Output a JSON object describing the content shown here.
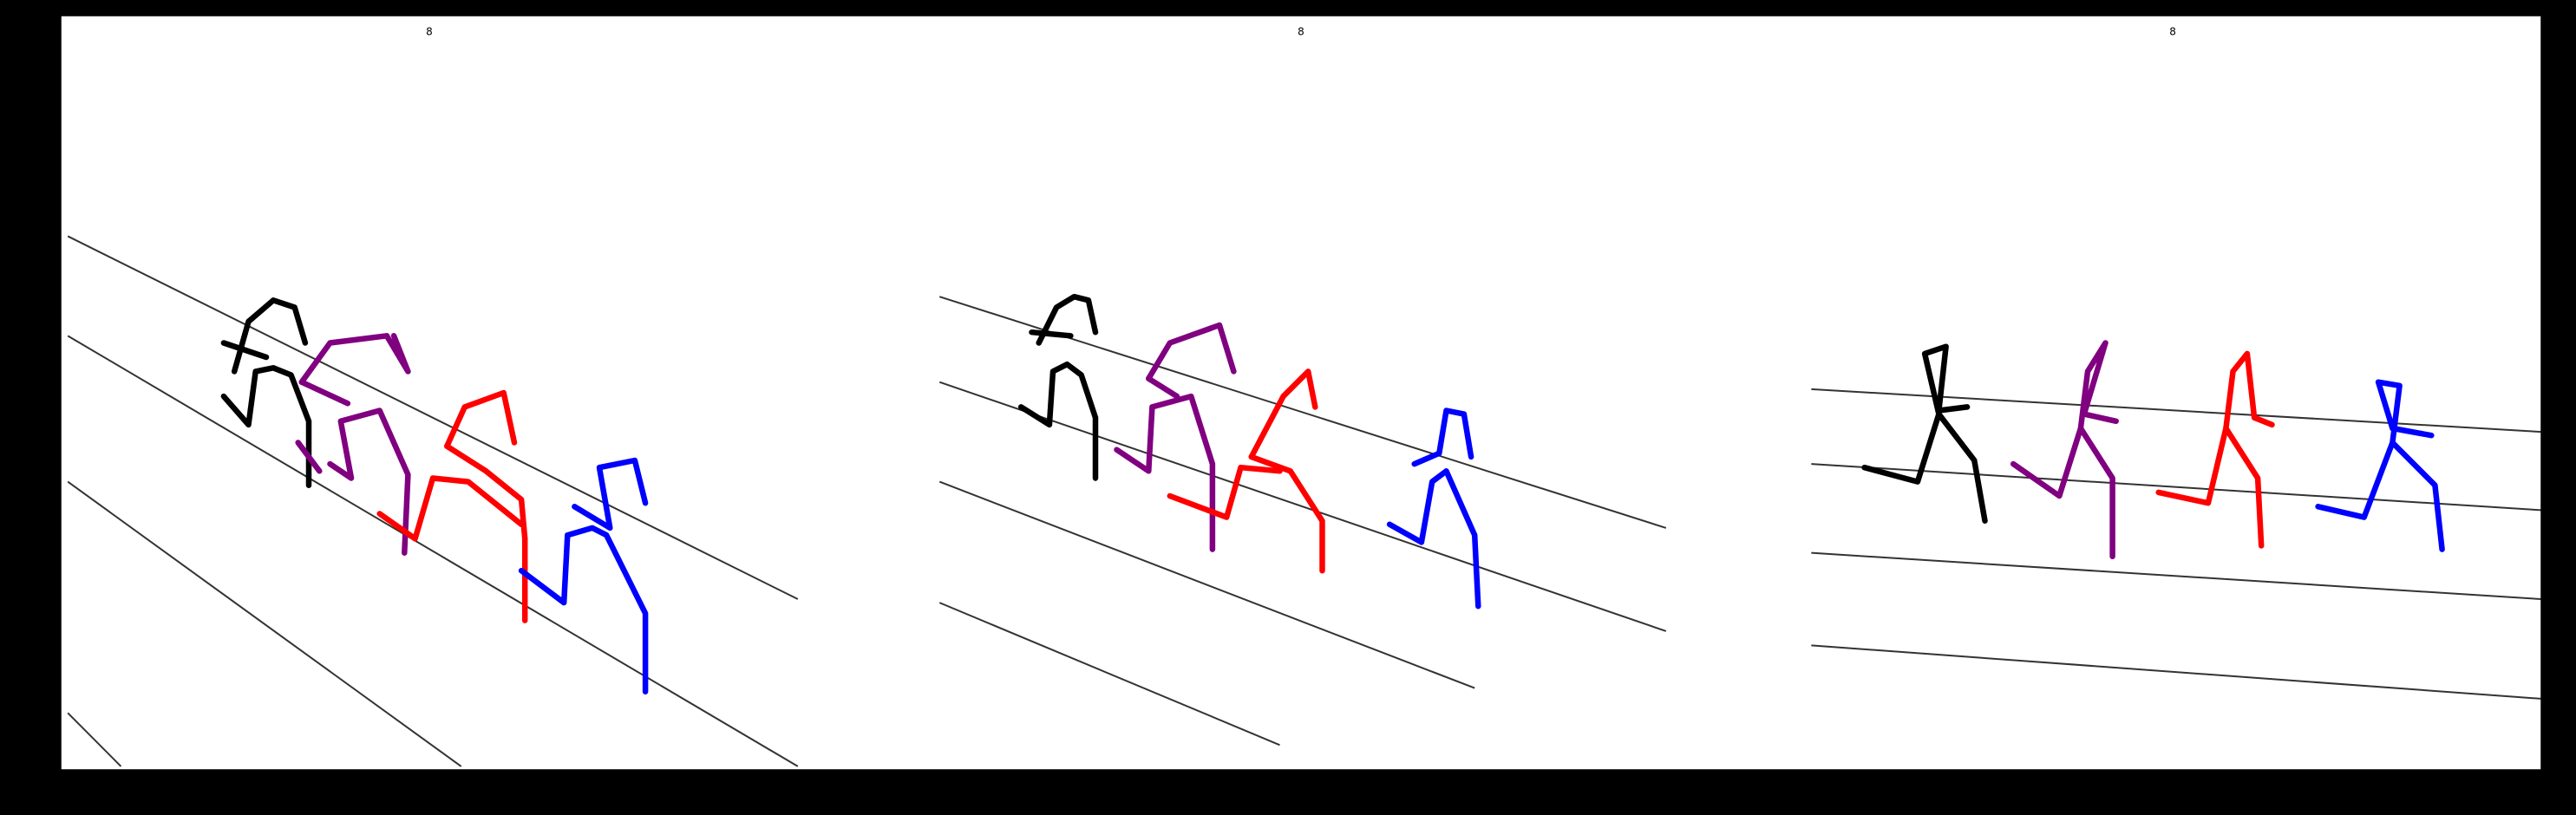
{
  "chart_data": {
    "type": "line",
    "title": "",
    "xlabel": "",
    "ylabel": "",
    "xlim": [
      0,
      7000
    ],
    "ylim": [
      2120,
      0
    ],
    "y_inverted": true,
    "grid": false,
    "legend": "none",
    "xticks": [
      0,
      1000,
      2000,
      3000,
      4000,
      5000,
      6000,
      7000
    ],
    "yticks": [
      0,
      250,
      500,
      750,
      1000,
      1250,
      1500,
      1750,
      2000
    ],
    "panel_labels": [
      {
        "text": "8",
        "x": 1040,
        "y": 30
      },
      {
        "text": "8",
        "x": 3500,
        "y": 30
      },
      {
        "text": "8",
        "x": 5960,
        "y": 30
      }
    ],
    "colors": {
      "background": "#ffffff",
      "lane_lines": "#333333",
      "runner_1": "#000000",
      "runner_2": "#800080",
      "runner_3": "#ff0000",
      "runner_4": "#0000ff"
    },
    "lane_lines": [
      [
        [
          20,
          620
        ],
        [
          2080,
          1640
        ]
      ],
      [
        [
          20,
          900
        ],
        [
          2080,
          2110
        ]
      ],
      [
        [
          20,
          1310
        ],
        [
          1130,
          2110
        ]
      ],
      [
        [
          20,
          1960
        ],
        [
          170,
          2110
        ]
      ],
      [
        [
          2480,
          790
        ],
        [
          4530,
          1440
        ]
      ],
      [
        [
          2480,
          1030
        ],
        [
          4530,
          1730
        ]
      ],
      [
        [
          2480,
          1310
        ],
        [
          3990,
          1890
        ]
      ],
      [
        [
          2480,
          1650
        ],
        [
          3440,
          2050
        ]
      ],
      [
        [
          4940,
          1050
        ],
        [
          7000,
          1170
        ]
      ],
      [
        [
          4940,
          1260
        ],
        [
          7000,
          1390
        ]
      ],
      [
        [
          4940,
          1510
        ],
        [
          7000,
          1640
        ]
      ],
      [
        [
          4940,
          1770
        ],
        [
          7000,
          1920
        ]
      ]
    ],
    "series": [
      {
        "color": "#000000",
        "segments": [
          [
            [
              490,
              1000
            ],
            [
              530,
              860
            ],
            [
              600,
              800
            ],
            [
              660,
              820
            ],
            [
              690,
              920
            ]
          ],
          [
            [
              460,
              1070
            ],
            [
              530,
              1150
            ],
            [
              550,
              1000
            ],
            [
              600,
              990
            ],
            [
              650,
              1010
            ],
            [
              700,
              1140
            ],
            [
              700,
              1320
            ]
          ],
          [
            [
              460,
              920
            ],
            [
              580,
              960
            ]
          ],
          [
            [
              2710,
              1100
            ],
            [
              2790,
              1150
            ],
            [
              2800,
              1000
            ],
            [
              2840,
              980
            ],
            [
              2880,
              1010
            ],
            [
              2920,
              1130
            ],
            [
              2920,
              1300
            ]
          ],
          [
            [
              2760,
              920
            ],
            [
              2810,
              820
            ],
            [
              2860,
              790
            ],
            [
              2900,
              800
            ],
            [
              2920,
              890
            ]
          ],
          [
            [
              2740,
              890
            ],
            [
              2850,
              900
            ]
          ],
          [
            [
              5090,
              1270
            ],
            [
              5240,
              1310
            ],
            [
              5300,
              1120
            ],
            [
              5400,
              1250
            ],
            [
              5430,
              1420
            ]
          ],
          [
            [
              5300,
              1120
            ],
            [
              5260,
              950
            ],
            [
              5320,
              930
            ],
            [
              5300,
              1110
            ],
            [
              5380,
              1100
            ]
          ]
        ]
      },
      {
        "color": "#800080",
        "segments": [
          [
            [
              680,
              1030
            ],
            [
              760,
              920
            ],
            [
              920,
              900
            ],
            [
              980,
              1000
            ],
            [
              940,
              900
            ]
          ],
          [
            [
              680,
              1030
            ],
            [
              810,
              1090
            ]
          ],
          [
            [
              760,
              1260
            ],
            [
              820,
              1300
            ],
            [
              790,
              1140
            ],
            [
              900,
              1110
            ],
            [
              980,
              1290
            ],
            [
              970,
              1510
            ]
          ],
          [
            [
              670,
              1200
            ],
            [
              730,
              1280
            ]
          ],
          [
            [
              3070,
              1020
            ],
            [
              3130,
              920
            ],
            [
              3270,
              870
            ],
            [
              3310,
              1000
            ]
          ],
          [
            [
              3070,
              1020
            ],
            [
              3150,
              1070
            ]
          ],
          [
            [
              2980,
              1220
            ],
            [
              3070,
              1280
            ],
            [
              3080,
              1100
            ],
            [
              3190,
              1070
            ],
            [
              3250,
              1260
            ],
            [
              3250,
              1500
            ]
          ],
          [
            [
              5510,
              1260
            ],
            [
              5640,
              1350
            ],
            [
              5700,
              1160
            ],
            [
              5790,
              1300
            ],
            [
              5790,
              1520
            ]
          ],
          [
            [
              5700,
              1160
            ],
            [
              5720,
              1000
            ],
            [
              5770,
              920
            ],
            [
              5710,
              1120
            ],
            [
              5800,
              1140
            ]
          ]
        ]
      },
      {
        "color": "#ff0000",
        "segments": [
          [
            [
              1090,
              1210
            ],
            [
              1140,
              1100
            ],
            [
              1250,
              1060
            ],
            [
              1280,
              1200
            ]
          ],
          [
            [
              1090,
              1210
            ],
            [
              1200,
              1280
            ],
            [
              1300,
              1360
            ],
            [
              1310,
              1470
            ]
          ],
          [
            [
              1310,
              1470
            ],
            [
              1310,
              1700
            ]
          ],
          [
            [
              900,
              1400
            ],
            [
              1000,
              1470
            ],
            [
              1050,
              1300
            ],
            [
              1150,
              1310
            ],
            [
              1300,
              1430
            ]
          ],
          [
            [
              3360,
              1240
            ],
            [
              3450,
              1070
            ],
            [
              3520,
              1000
            ],
            [
              3540,
              1100
            ]
          ],
          [
            [
              3360,
              1240
            ],
            [
              3470,
              1280
            ],
            [
              3560,
              1420
            ],
            [
              3560,
              1560
            ]
          ],
          [
            [
              3130,
              1350
            ],
            [
              3290,
              1410
            ],
            [
              3330,
              1270
            ],
            [
              3440,
              1280
            ]
          ],
          [
            [
              5920,
              1340
            ],
            [
              6060,
              1370
            ],
            [
              6110,
              1160
            ],
            [
              6200,
              1300
            ],
            [
              6210,
              1490
            ]
          ],
          [
            [
              6110,
              1160
            ],
            [
              6130,
              1000
            ],
            [
              6170,
              950
            ],
            [
              6190,
              1130
            ],
            [
              6240,
              1150
            ]
          ]
        ]
      },
      {
        "color": "#0000ff",
        "segments": [
          [
            [
              1300,
              1560
            ],
            [
              1420,
              1650
            ],
            [
              1430,
              1460
            ],
            [
              1500,
              1440
            ],
            [
              1540,
              1460
            ],
            [
              1650,
              1680
            ],
            [
              1650,
              1900
            ]
          ],
          [
            [
              1450,
              1380
            ],
            [
              1550,
              1440
            ],
            [
              1520,
              1270
            ],
            [
              1620,
              1250
            ],
            [
              1650,
              1370
            ]
          ],
          [
            [
              3750,
              1430
            ],
            [
              3840,
              1480
            ],
            [
              3870,
              1310
            ],
            [
              3910,
              1280
            ],
            [
              3990,
              1460
            ],
            [
              4000,
              1660
            ]
          ],
          [
            [
              3820,
              1260
            ],
            [
              3890,
              1230
            ],
            [
              3910,
              1110
            ],
            [
              3960,
              1120
            ],
            [
              3980,
              1240
            ]
          ],
          [
            [
              6370,
              1380
            ],
            [
              6500,
              1410
            ],
            [
              6580,
              1200
            ],
            [
              6700,
              1320
            ],
            [
              6720,
              1500
            ]
          ],
          [
            [
              6580,
              1200
            ],
            [
              6600,
              1040
            ],
            [
              6540,
              1030
            ],
            [
              6580,
              1160
            ],
            [
              6690,
              1180
            ]
          ]
        ]
      }
    ]
  }
}
